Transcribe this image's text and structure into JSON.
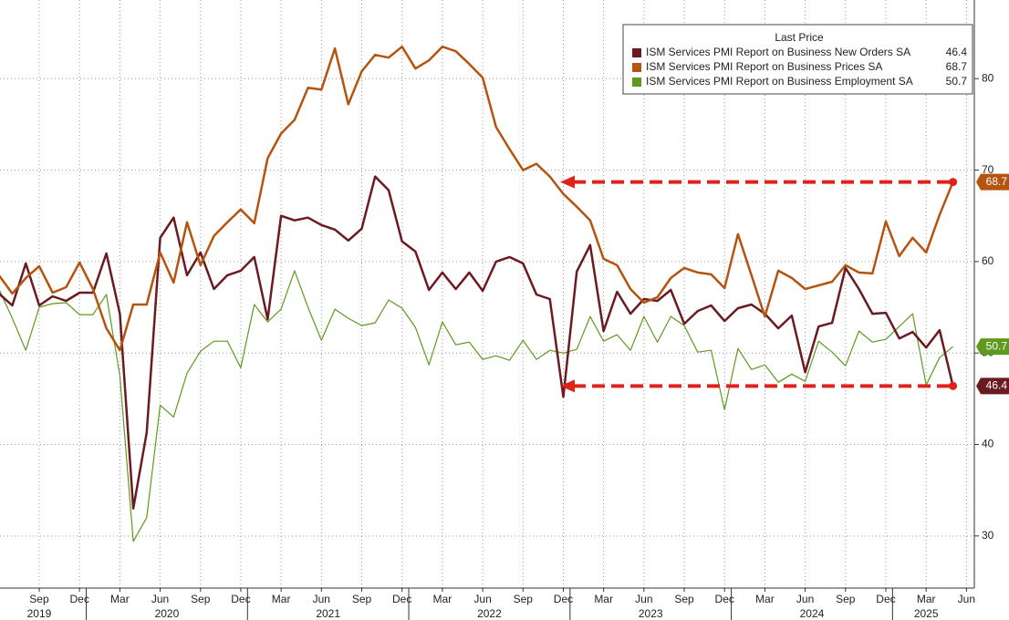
{
  "chart_data": {
    "type": "line",
    "legend_title": "Last Price",
    "x": [
      "2019-06",
      "2019-07",
      "2019-08",
      "2019-09",
      "2019-10",
      "2019-11",
      "2019-12",
      "2020-01",
      "2020-02",
      "2020-03",
      "2020-04",
      "2020-05",
      "2020-06",
      "2020-07",
      "2020-08",
      "2020-09",
      "2020-10",
      "2020-11",
      "2020-12",
      "2021-01",
      "2021-02",
      "2021-03",
      "2021-04",
      "2021-05",
      "2021-06",
      "2021-07",
      "2021-08",
      "2021-09",
      "2021-10",
      "2021-11",
      "2021-12",
      "2022-01",
      "2022-02",
      "2022-03",
      "2022-04",
      "2022-05",
      "2022-06",
      "2022-07",
      "2022-08",
      "2022-09",
      "2022-10",
      "2022-11",
      "2022-12",
      "2023-01",
      "2023-02",
      "2023-03",
      "2023-04",
      "2023-05",
      "2023-06",
      "2023-07",
      "2023-08",
      "2023-09",
      "2023-10",
      "2023-11",
      "2023-12",
      "2024-01",
      "2024-02",
      "2024-03",
      "2024-04",
      "2024-05",
      "2024-06",
      "2024-07",
      "2024-08",
      "2024-09",
      "2024-10",
      "2024-11",
      "2024-12",
      "2025-01",
      "2025-02",
      "2025-03",
      "2025-04",
      "2025-05"
    ],
    "series": [
      {
        "name": "ISM Services PMI Report on Business New Orders SA",
        "color": "#6b1a22",
        "width": 2.5,
        "values": [
          56.5,
          55.2,
          59.8,
          55.2,
          56.2,
          55.7,
          56.6,
          56.6,
          60.9,
          54.3,
          33,
          41.3,
          62.6,
          64.8,
          58.5,
          61,
          57,
          58.5,
          59,
          60.5,
          53.7,
          65,
          64.5,
          64.8,
          64,
          63.5,
          62.3,
          63.6,
          69.3,
          67.8,
          62.2,
          61.1,
          56.9,
          58.8,
          57,
          58.8,
          56.8,
          60,
          60.5,
          59.8,
          56.4,
          55.9,
          45.2,
          58.9,
          61.8,
          52.4,
          56.7,
          54.3,
          55.9,
          55.7,
          56.9,
          53.2,
          54.6,
          55.2,
          53.5,
          54.9,
          55.3,
          54.3,
          52.7,
          54.1,
          47.9,
          52.9,
          53.3,
          59.3,
          57,
          54.3,
          54.4,
          51.6,
          52.3,
          50.6,
          52.5,
          46.4
        ]
      },
      {
        "name": "ISM Services PMI Report on Business Prices SA",
        "color": "#b5530f",
        "width": 2.5,
        "values": [
          58.5,
          56.5,
          58.2,
          59.5,
          56.6,
          57.2,
          59.9,
          57,
          52.7,
          50.3,
          55.3,
          55.3,
          61,
          57.7,
          64.3,
          59.6,
          62.8,
          64.3,
          65.7,
          64.2,
          71.3,
          74,
          75.5,
          79,
          78.8,
          83.3,
          77.2,
          80.8,
          82.6,
          82.3,
          83.5,
          81.1,
          82,
          83.5,
          83,
          81.6,
          80.1,
          74.7,
          72.3,
          70,
          70.7,
          69.3,
          67.4,
          66,
          64.5,
          60.3,
          59.6,
          57,
          55.5,
          56.1,
          58.2,
          59.3,
          58.8,
          58.6,
          57.1,
          63,
          58.5,
          54,
          59,
          58.2,
          57,
          57.4,
          57.8,
          59.6,
          58.8,
          58.7,
          64.4,
          60.6,
          62.6,
          61,
          65.1,
          68.7
        ]
      },
      {
        "name": "ISM Services PMI Report on Business Employment SA",
        "color": "#5f9a1e",
        "width": 1.2,
        "values": [
          57,
          53.8,
          50.3,
          55,
          55.4,
          55.5,
          54.2,
          54.2,
          56.4,
          47.5,
          29.4,
          32,
          44.3,
          43,
          47.8,
          50.2,
          51.3,
          51.3,
          48.4,
          55.3,
          53.4,
          54.8,
          59,
          55,
          51.4,
          54.8,
          53.8,
          53,
          53.3,
          55.8,
          54.9,
          52.8,
          48.7,
          53.4,
          50.9,
          51.2,
          49.3,
          49.7,
          49.2,
          51.4,
          49.3,
          50.3,
          50,
          50.4,
          54,
          51.3,
          52,
          50.3,
          54,
          51.2,
          54,
          53,
          50.1,
          50.3,
          43.8,
          50.5,
          48.2,
          48.7,
          46.8,
          47.7,
          46.9,
          51.3,
          50.1,
          48.6,
          52.4,
          51.2,
          51.5,
          52.9,
          54.3,
          46.5,
          49.5,
          50.7
        ]
      }
    ],
    "arrows": [
      1,
      0
    ],
    "ylim": [
      24.3,
      88.6
    ],
    "yticks": [
      30,
      40,
      50,
      60,
      70,
      80
    ],
    "xticks": [
      {
        "value": "2019-09",
        "label": "Sep"
      },
      {
        "value": "2019-12",
        "label": "Dec"
      },
      {
        "value": "2020-03",
        "label": "Mar"
      },
      {
        "value": "2020-06",
        "label": "Jun"
      },
      {
        "value": "2020-09",
        "label": "Sep"
      },
      {
        "value": "2020-12",
        "label": "Dec"
      },
      {
        "value": "2021-03",
        "label": "Mar"
      },
      {
        "value": "2021-06",
        "label": "Jun"
      },
      {
        "value": "2021-09",
        "label": "Sep"
      },
      {
        "value": "2021-12",
        "label": "Dec"
      },
      {
        "value": "2022-03",
        "label": "Mar"
      },
      {
        "value": "2022-06",
        "label": "Jun"
      },
      {
        "value": "2022-09",
        "label": "Sep"
      },
      {
        "value": "2022-12",
        "label": "Dec"
      },
      {
        "value": "2023-03",
        "label": "Mar"
      },
      {
        "value": "2023-06",
        "label": "Jun"
      },
      {
        "value": "2023-09",
        "label": "Sep"
      },
      {
        "value": "2023-12",
        "label": "Dec"
      },
      {
        "value": "2024-03",
        "label": "Mar"
      },
      {
        "value": "2024-06",
        "label": "Jun"
      },
      {
        "value": "2024-09",
        "label": "Sep"
      },
      {
        "value": "2024-12",
        "label": "Dec"
      },
      {
        "value": "2025-03",
        "label": "Mar"
      },
      {
        "value": "2025-06",
        "label": "Jun"
      }
    ],
    "year_labels": [
      "2019",
      "2020",
      "2021",
      "2022",
      "2023",
      "2024",
      "2025"
    ],
    "grid": true
  }
}
